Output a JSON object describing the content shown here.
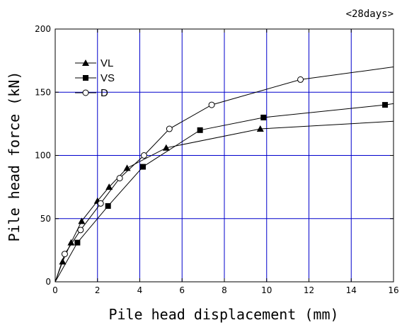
{
  "chart_data": {
    "type": "line",
    "note": "<28days>",
    "xlabel": "Pile head displacement (mm)",
    "ylabel": "Pile head force  (kN)",
    "xlim": [
      0,
      16
    ],
    "ylim": [
      0,
      200
    ],
    "xticks": [
      0,
      2,
      4,
      6,
      8,
      10,
      12,
      14,
      16
    ],
    "yticks": [
      0,
      50,
      100,
      150,
      200
    ],
    "grid": true,
    "grid_color": "#0000cc",
    "legend_position": "top-left",
    "series": [
      {
        "name": "VL",
        "marker": "filled-triangle",
        "x": [
          0,
          0.35,
          0.75,
          1.25,
          2.0,
          2.55,
          3.4,
          5.25,
          9.7,
          16
        ],
        "y": [
          0,
          16,
          31,
          48,
          64,
          75,
          90,
          106,
          121,
          127
        ]
      },
      {
        "name": "VS",
        "marker": "filled-square",
        "x": [
          0,
          1.05,
          2.5,
          4.15,
          6.85,
          9.85,
          15.6,
          16
        ],
        "y": [
          0,
          31,
          60,
          91,
          120,
          130,
          140,
          141
        ]
      },
      {
        "name": "D",
        "marker": "open-circle",
        "x": [
          0,
          0.45,
          1.2,
          2.15,
          3.05,
          4.2,
          5.4,
          7.4,
          11.6,
          16
        ],
        "y": [
          0,
          22,
          41,
          62,
          82,
          100,
          121,
          140,
          160,
          170
        ]
      }
    ]
  }
}
